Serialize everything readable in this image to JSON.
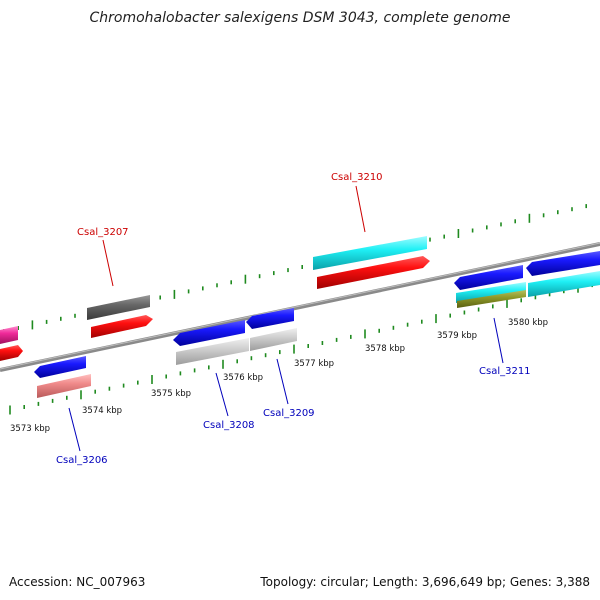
{
  "title": "Chromohalobacter salexigens DSM 3043, complete genome",
  "accession": "Accession: NC_007963",
  "summary": "Topology: circular; Length: 3,696,649 bp; Genes: 3,388",
  "colors": {
    "backbone": "#8c8c8c",
    "tick": "#1f8a1f",
    "forward_label": "#cc0000",
    "reverse_label": "#0000bb"
  },
  "kbp_labels": [
    "3573 kbp",
    "3574 kbp",
    "3575 kbp",
    "3576 kbp",
    "3577 kbp",
    "3578 kbp",
    "3579 kbp",
    "3580 kbp"
  ],
  "gene_labels": {
    "csal_3206": "Csal_3206",
    "csal_3207": "Csal_3207",
    "csal_3208": "Csal_3208",
    "csal_3209": "Csal_3209",
    "csal_3210": "Csal_3210",
    "csal_3211": "Csal_3211"
  }
}
